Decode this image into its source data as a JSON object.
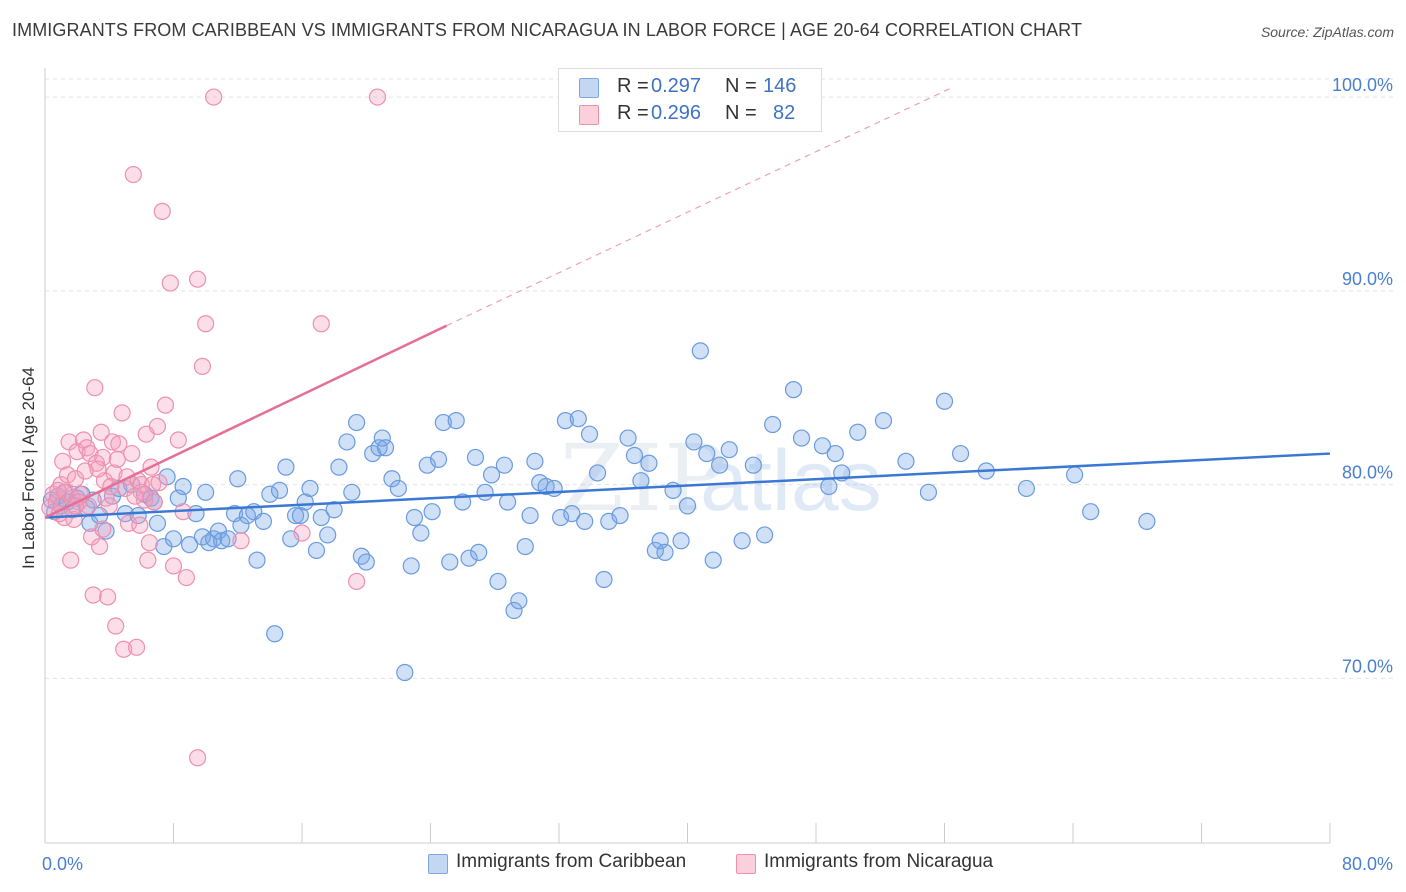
{
  "header": {
    "title": "IMMIGRANTS FROM CARIBBEAN VS IMMIGRANTS FROM NICARAGUA IN LABOR FORCE | AGE 20-64 CORRELATION CHART",
    "source": "Source: ZipAtlas.com"
  },
  "legend": {
    "r_label": "R =",
    "n_label": "N =",
    "rows": [
      {
        "r": "0.297",
        "n": "146",
        "color": "#a9c6ee",
        "border": "#7ea7e0"
      },
      {
        "r": "0.296",
        "n": "82",
        "color": "#f7b6c9",
        "border": "#ee8fab"
      }
    ]
  },
  "watermark": {
    "zip": "ZIP",
    "atlas": "atlas"
  },
  "colors": {
    "blue": "#3a78d4",
    "blue_fill": "rgba(120,165,230,0.35)",
    "blue_stroke": "#6a9be0",
    "pink": "#e46f97",
    "pink_fill": "rgba(245,160,190,0.35)",
    "pink_stroke": "#ee8fb0",
    "axis_label": "#4a7fd0"
  },
  "chart_data": {
    "type": "scatter",
    "title": "IMMIGRANTS FROM CARIBBEAN VS IMMIGRANTS FROM NICARAGUA IN LABOR FORCE | AGE 20-64 CORRELATION CHART",
    "xlabel": "",
    "ylabel": "In Labor Force | Age 20-64",
    "xlim": [
      0,
      80
    ],
    "ylim": [
      61.5,
      101.5
    ],
    "x_tick_labels": [
      "0.0%",
      "80.0%"
    ],
    "y_ticks": [
      70,
      80,
      90,
      100
    ],
    "y_tick_labels": [
      "70.0%",
      "80.0%",
      "90.0%",
      "100.0%"
    ],
    "grid": true,
    "legend_placement": "top-center",
    "series": [
      {
        "name": "Immigrants from Caribbean",
        "color": "#3a78d4",
        "trend": {
          "x": [
            0,
            80
          ],
          "y": [
            78.3,
            81.6
          ],
          "style": "solid"
        },
        "points": [
          [
            0.4,
            79.2
          ],
          [
            0.6,
            78.6
          ],
          [
            0.8,
            79.4
          ],
          [
            1.0,
            78.9
          ],
          [
            1.2,
            79.6
          ],
          [
            1.4,
            79.1
          ],
          [
            1.7,
            78.7
          ],
          [
            2.0,
            79.3
          ],
          [
            2.3,
            79.5
          ],
          [
            2.6,
            78.8
          ],
          [
            2.8,
            78.0
          ],
          [
            3.0,
            79.2
          ],
          [
            3.4,
            78.4
          ],
          [
            3.8,
            77.6
          ],
          [
            4.2,
            79.4
          ],
          [
            4.6,
            79.8
          ],
          [
            5.0,
            78.5
          ],
          [
            5.4,
            80.0
          ],
          [
            5.8,
            78.4
          ],
          [
            6.2,
            79.5
          ],
          [
            6.6,
            79.3
          ],
          [
            6.8,
            79.1
          ],
          [
            7.0,
            78.0
          ],
          [
            7.4,
            76.8
          ],
          [
            7.6,
            80.4
          ],
          [
            8.0,
            77.2
          ],
          [
            8.3,
            79.3
          ],
          [
            8.6,
            79.9
          ],
          [
            9.0,
            76.9
          ],
          [
            9.4,
            78.5
          ],
          [
            9.8,
            77.3
          ],
          [
            10.0,
            79.6
          ],
          [
            10.2,
            77.0
          ],
          [
            10.5,
            77.2
          ],
          [
            10.8,
            77.6
          ],
          [
            11.0,
            77.1
          ],
          [
            11.4,
            77.2
          ],
          [
            11.8,
            78.5
          ],
          [
            12.0,
            80.3
          ],
          [
            12.2,
            77.9
          ],
          [
            12.6,
            78.4
          ],
          [
            13.0,
            78.6
          ],
          [
            13.2,
            76.1
          ],
          [
            13.6,
            78.1
          ],
          [
            14.0,
            79.5
          ],
          [
            14.3,
            72.3
          ],
          [
            14.6,
            79.7
          ],
          [
            15.0,
            80.9
          ],
          [
            15.3,
            77.2
          ],
          [
            15.6,
            78.4
          ],
          [
            15.9,
            78.4
          ],
          [
            16.2,
            79.1
          ],
          [
            16.5,
            79.8
          ],
          [
            16.9,
            76.6
          ],
          [
            17.2,
            78.3
          ],
          [
            17.6,
            77.4
          ],
          [
            18.0,
            78.7
          ],
          [
            18.3,
            80.9
          ],
          [
            18.8,
            82.2
          ],
          [
            19.1,
            79.6
          ],
          [
            19.4,
            83.2
          ],
          [
            19.7,
            76.3
          ],
          [
            20.0,
            76.0
          ],
          [
            20.4,
            81.6
          ],
          [
            20.8,
            81.9
          ],
          [
            21.0,
            82.4
          ],
          [
            21.2,
            81.9
          ],
          [
            21.6,
            80.3
          ],
          [
            22.0,
            79.8
          ],
          [
            22.4,
            70.3
          ],
          [
            22.8,
            75.8
          ],
          [
            23.0,
            78.3
          ],
          [
            23.4,
            77.5
          ],
          [
            23.8,
            81.0
          ],
          [
            24.1,
            78.6
          ],
          [
            24.5,
            81.3
          ],
          [
            24.8,
            83.2
          ],
          [
            25.2,
            76.0
          ],
          [
            25.6,
            83.3
          ],
          [
            26.0,
            79.1
          ],
          [
            26.4,
            76.2
          ],
          [
            26.8,
            81.4
          ],
          [
            27.0,
            76.5
          ],
          [
            27.4,
            79.6
          ],
          [
            27.8,
            80.5
          ],
          [
            28.2,
            75.0
          ],
          [
            28.6,
            81.0
          ],
          [
            28.8,
            79.1
          ],
          [
            29.2,
            73.5
          ],
          [
            29.5,
            74.0
          ],
          [
            29.9,
            76.8
          ],
          [
            30.2,
            78.4
          ],
          [
            30.5,
            81.2
          ],
          [
            30.8,
            80.1
          ],
          [
            31.2,
            79.9
          ],
          [
            31.7,
            79.8
          ],
          [
            32.1,
            78.3
          ],
          [
            32.4,
            83.3
          ],
          [
            32.8,
            78.5
          ],
          [
            33.2,
            83.4
          ],
          [
            33.6,
            78.1
          ],
          [
            33.9,
            82.6
          ],
          [
            34.4,
            80.6
          ],
          [
            34.8,
            75.1
          ],
          [
            35.1,
            78.1
          ],
          [
            35.8,
            78.4
          ],
          [
            36.3,
            82.4
          ],
          [
            36.7,
            81.5
          ],
          [
            37.1,
            80.2
          ],
          [
            37.6,
            81.1
          ],
          [
            38.0,
            76.6
          ],
          [
            38.3,
            77.1
          ],
          [
            38.6,
            76.5
          ],
          [
            39.1,
            79.7
          ],
          [
            39.6,
            77.1
          ],
          [
            40.0,
            78.9
          ],
          [
            40.4,
            82.2
          ],
          [
            40.8,
            86.9
          ],
          [
            41.2,
            81.6
          ],
          [
            41.6,
            76.1
          ],
          [
            42.0,
            81.0
          ],
          [
            42.6,
            81.8
          ],
          [
            43.4,
            77.1
          ],
          [
            44.1,
            81.0
          ],
          [
            44.8,
            77.4
          ],
          [
            45.3,
            83.1
          ],
          [
            46.6,
            84.9
          ],
          [
            47.1,
            82.4
          ],
          [
            48.4,
            82.0
          ],
          [
            48.8,
            79.9
          ],
          [
            49.2,
            81.6
          ],
          [
            49.6,
            80.6
          ],
          [
            50.6,
            82.7
          ],
          [
            52.2,
            83.3
          ],
          [
            53.6,
            81.2
          ],
          [
            55.0,
            79.6
          ],
          [
            56.0,
            84.3
          ],
          [
            57.0,
            81.6
          ],
          [
            58.6,
            80.7
          ],
          [
            61.1,
            79.8
          ],
          [
            64.1,
            80.5
          ],
          [
            65.1,
            78.6
          ],
          [
            68.6,
            78.1
          ]
        ]
      },
      {
        "name": "Immigrants from Nicaragua",
        "color": "#e46f97",
        "trend": {
          "x": [
            0,
            25
          ],
          "y": [
            78.3,
            88.2
          ],
          "style": "solid",
          "dashed_extension": {
            "x": [
              25,
              56.5
            ],
            "y": [
              88.2,
              100.5
            ]
          }
        },
        "points": [
          [
            0.3,
            78.8
          ],
          [
            0.5,
            79.5
          ],
          [
            0.7,
            79.1
          ],
          [
            0.9,
            78.5
          ],
          [
            1.0,
            80.0
          ],
          [
            1.1,
            81.2
          ],
          [
            1.3,
            79.6
          ],
          [
            1.4,
            80.5
          ],
          [
            1.5,
            82.2
          ],
          [
            1.6,
            76.1
          ],
          [
            1.7,
            79.3
          ],
          [
            1.8,
            78.2
          ],
          [
            1.9,
            80.3
          ],
          [
            2.0,
            81.7
          ],
          [
            2.2,
            79.5
          ],
          [
            2.4,
            82.3
          ],
          [
            2.6,
            81.9
          ],
          [
            2.7,
            78.9
          ],
          [
            2.8,
            81.6
          ],
          [
            2.9,
            77.3
          ],
          [
            3.0,
            74.3
          ],
          [
            3.1,
            85.0
          ],
          [
            3.2,
            81.1
          ],
          [
            3.4,
            76.8
          ],
          [
            3.5,
            82.7
          ],
          [
            3.6,
            81.4
          ],
          [
            3.7,
            80.2
          ],
          [
            3.8,
            79.3
          ],
          [
            3.9,
            74.2
          ],
          [
            4.0,
            78.9
          ],
          [
            4.2,
            82.2
          ],
          [
            4.3,
            80.6
          ],
          [
            4.4,
            72.7
          ],
          [
            4.6,
            82.1
          ],
          [
            4.8,
            83.7
          ],
          [
            4.9,
            71.5
          ],
          [
            5.0,
            79.8
          ],
          [
            5.1,
            80.4
          ],
          [
            5.2,
            78.0
          ],
          [
            5.4,
            81.6
          ],
          [
            5.5,
            96.0
          ],
          [
            5.7,
            71.6
          ],
          [
            5.8,
            80.2
          ],
          [
            6.0,
            80.0
          ],
          [
            6.2,
            79.2
          ],
          [
            6.3,
            82.6
          ],
          [
            6.4,
            76.1
          ],
          [
            6.5,
            77.0
          ],
          [
            6.7,
            80.0
          ],
          [
            7.0,
            83.0
          ],
          [
            7.3,
            94.1
          ],
          [
            7.5,
            84.1
          ],
          [
            7.8,
            90.4
          ],
          [
            8.0,
            75.8
          ],
          [
            8.3,
            82.3
          ],
          [
            8.6,
            78.6
          ],
          [
            8.8,
            75.2
          ],
          [
            9.5,
            90.6
          ],
          [
            9.8,
            86.1
          ],
          [
            10.0,
            88.3
          ],
          [
            10.5,
            100.0
          ],
          [
            12.2,
            77.1
          ],
          [
            16.0,
            77.5
          ],
          [
            17.2,
            88.3
          ],
          [
            19.4,
            75.0
          ],
          [
            20.7,
            100.0
          ],
          [
            9.5,
            65.9
          ],
          [
            6.0,
            79.6
          ],
          [
            6.8,
            79.1
          ],
          [
            4.1,
            79.9
          ],
          [
            2.1,
            79.1
          ],
          [
            1.2,
            78.3
          ],
          [
            0.8,
            79.7
          ],
          [
            3.3,
            80.8
          ],
          [
            5.6,
            79.4
          ],
          [
            7.1,
            80.1
          ],
          [
            2.5,
            80.7
          ],
          [
            4.5,
            81.3
          ],
          [
            6.6,
            80.9
          ],
          [
            5.9,
            77.9
          ],
          [
            3.6,
            77.7
          ],
          [
            1.9,
            78.9
          ]
        ]
      }
    ]
  }
}
